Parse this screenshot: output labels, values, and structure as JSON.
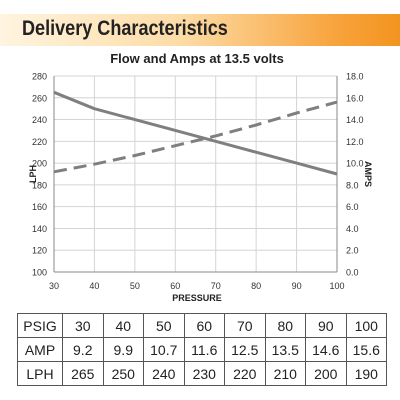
{
  "header": {
    "title": "Delivery Characteristics"
  },
  "chart_data": {
    "type": "line",
    "title": "Flow and Amps at 13.5 volts",
    "xlabel": "PRESSURE",
    "ylabel": "LPH",
    "y2label": "AMPS",
    "xlim": [
      30,
      100
    ],
    "ylim": [
      100,
      280
    ],
    "y2lim": [
      0,
      18
    ],
    "x_ticks": [
      "30",
      "40",
      "50",
      "60",
      "70",
      "80",
      "90",
      "100"
    ],
    "y_ticks": [
      "100",
      "120",
      "140",
      "160",
      "180",
      "200",
      "220",
      "240",
      "260",
      "280"
    ],
    "y2_ticks": [
      "0.0",
      "2.0",
      "4.0",
      "6.0",
      "8.0",
      "10.0",
      "12.0",
      "14.0",
      "16.0",
      "18.0"
    ],
    "grid": true,
    "series": [
      {
        "axis": "left",
        "style": "solid",
        "color": "#7f7f7f",
        "x": [
          30,
          40,
          50,
          60,
          70,
          80,
          90,
          100
        ],
        "values": [
          265,
          250,
          240,
          230,
          220,
          210,
          200,
          190
        ]
      },
      {
        "axis": "right",
        "style": "dashed",
        "color": "#7f7f7f",
        "x": [
          30,
          40,
          50,
          60,
          70,
          80,
          90,
          100
        ],
        "values": [
          9.2,
          9.9,
          10.7,
          11.6,
          12.5,
          13.5,
          14.6,
          15.6
        ]
      }
    ]
  },
  "table": {
    "rows": [
      {
        "label": "PSIG",
        "values": [
          "30",
          "40",
          "50",
          "60",
          "70",
          "80",
          "90",
          "100"
        ]
      },
      {
        "label": "AMP",
        "values": [
          "9.2",
          "9.9",
          "10.7",
          "11.6",
          "12.5",
          "13.5",
          "14.6",
          "15.6"
        ]
      },
      {
        "label": "LPH",
        "values": [
          "265",
          "250",
          "240",
          "230",
          "220",
          "210",
          "200",
          "190"
        ]
      }
    ]
  }
}
